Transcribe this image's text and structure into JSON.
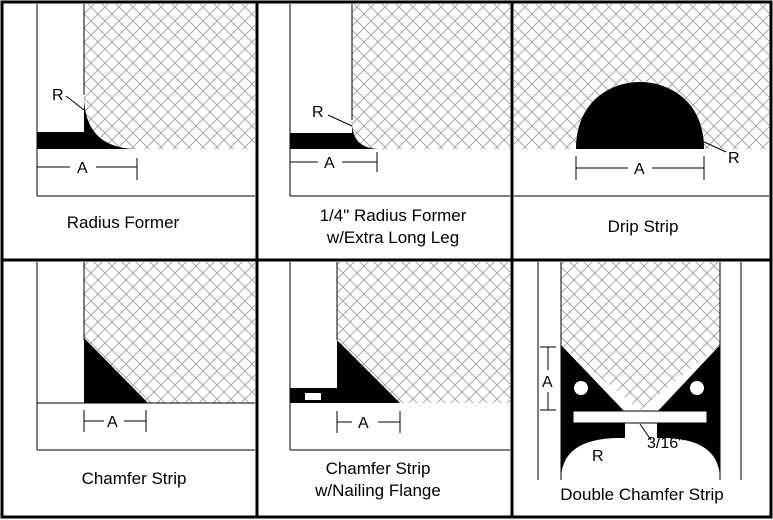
{
  "panels": [
    {
      "id": "radius-former",
      "caption_lines": [
        "Radius Former"
      ],
      "labels": {
        "r": "R",
        "a": "A"
      }
    },
    {
      "id": "quarter-radius-former",
      "caption_lines": [
        "1/4\" Radius Former",
        "w/Extra Long Leg"
      ],
      "labels": {
        "r": "R",
        "a": "A"
      }
    },
    {
      "id": "drip-strip",
      "caption_lines": [
        "Drip Strip"
      ],
      "labels": {
        "r": "R",
        "a": "A"
      }
    },
    {
      "id": "chamfer-strip",
      "caption_lines": [
        "Chamfer Strip"
      ],
      "labels": {
        "a": "A"
      }
    },
    {
      "id": "chamfer-nailing",
      "caption_lines": [
        "Chamfer Strip",
        "w/Nailing Flange"
      ],
      "labels": {
        "a": "A"
      }
    },
    {
      "id": "double-chamfer",
      "caption_lines": [
        "Double Chamfer Strip"
      ],
      "labels": {
        "a": "A",
        "r": "R",
        "gap": "3/16\""
      }
    }
  ]
}
